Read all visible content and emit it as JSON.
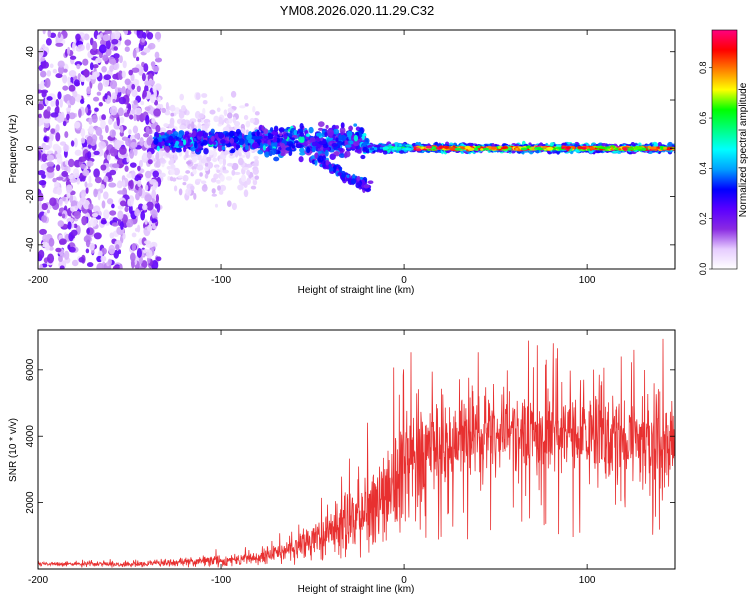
{
  "page_title": "YM08.2026.020.11.29.C32",
  "chart_data": [
    {
      "type": "heatmap",
      "title": "YM08.2026.020.11.29.C32",
      "xlabel": "Height of straight line (km)",
      "ylabel": "Frequency (Hz)",
      "xlim": [
        -200,
        148
      ],
      "ylim": [
        -50,
        49
      ],
      "xticks": [
        -200,
        -100,
        0,
        100
      ],
      "yticks": [
        -40,
        -20,
        0,
        20,
        40
      ],
      "colorbar": {
        "label": "Normalized spectral amplitude",
        "range": [
          0,
          0.95
        ],
        "ticks": [
          0.0,
          0.2,
          0.4,
          0.6,
          0.8
        ],
        "colors": [
          "#ffffff",
          "#e6ccff",
          "#8a2be2",
          "#5a00ff",
          "#0000ff",
          "#00a0ff",
          "#00ffff",
          "#00ff80",
          "#00ff00",
          "#ffff00",
          "#ff8000",
          "#ff0000",
          "#ff0080"
        ]
      },
      "description_regions": [
        {
          "x_range": [
            -200,
            -135
          ],
          "f_range": [
            -50,
            49
          ],
          "amplitude": "0.05-0.2 scattered noise"
        },
        {
          "x_range": [
            -135,
            -85
          ],
          "f_range": [
            -25,
            25
          ],
          "amplitude": "0.03-0.1 faint scatter"
        },
        {
          "x_range": [
            -135,
            -20
          ],
          "f_range": [
            -15,
            15
          ],
          "amplitude": "0.15-0.5 strong band"
        },
        {
          "x_range": [
            -20,
            148
          ],
          "f_range": [
            -3,
            3
          ],
          "amplitude": "0.4-0.95 narrow line near 0 Hz"
        }
      ]
    },
    {
      "type": "line",
      "xlabel": "Height of straight line (km)",
      "ylabel": "SNR (10 * v/v)",
      "xlim": [
        -200,
        148
      ],
      "ylim": [
        0,
        7200
      ],
      "xticks": [
        -200,
        -100,
        0,
        100
      ],
      "yticks": [
        2000,
        4000,
        6000
      ],
      "series_color": "#e83030",
      "envelope": {
        "x": [
          -200,
          -150,
          -100,
          -80,
          -60,
          -40,
          -20,
          -10,
          0,
          10,
          20,
          40,
          60,
          80,
          100,
          120,
          140,
          148
        ],
        "mean": [
          150,
          150,
          250,
          350,
          600,
          1100,
          1800,
          2400,
          3000,
          3400,
          3800,
          4100,
          4200,
          4100,
          4000,
          3900,
          3700,
          3600
        ],
        "peak": [
          250,
          300,
          600,
          700,
          1300,
          2500,
          4300,
          5500,
          6600,
          6500,
          6600,
          6700,
          6800,
          6700,
          6500,
          6600,
          7100,
          6300
        ]
      }
    }
  ]
}
